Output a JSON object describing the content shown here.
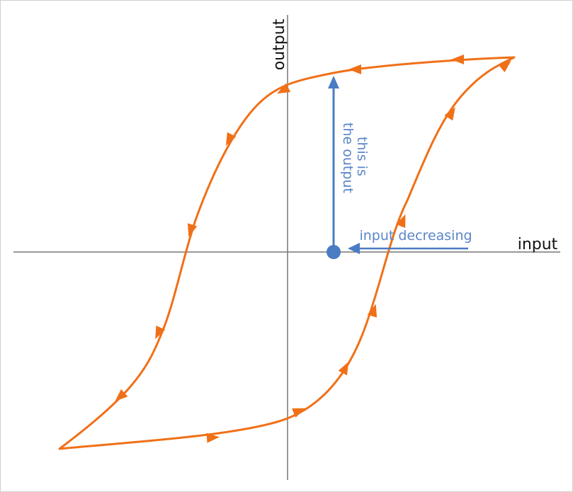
{
  "axes": {
    "x_label": "input",
    "y_label": "output"
  },
  "annotations": {
    "output_note": [
      "this is",
      "the output"
    ],
    "input_note": "input decreasing"
  }
}
